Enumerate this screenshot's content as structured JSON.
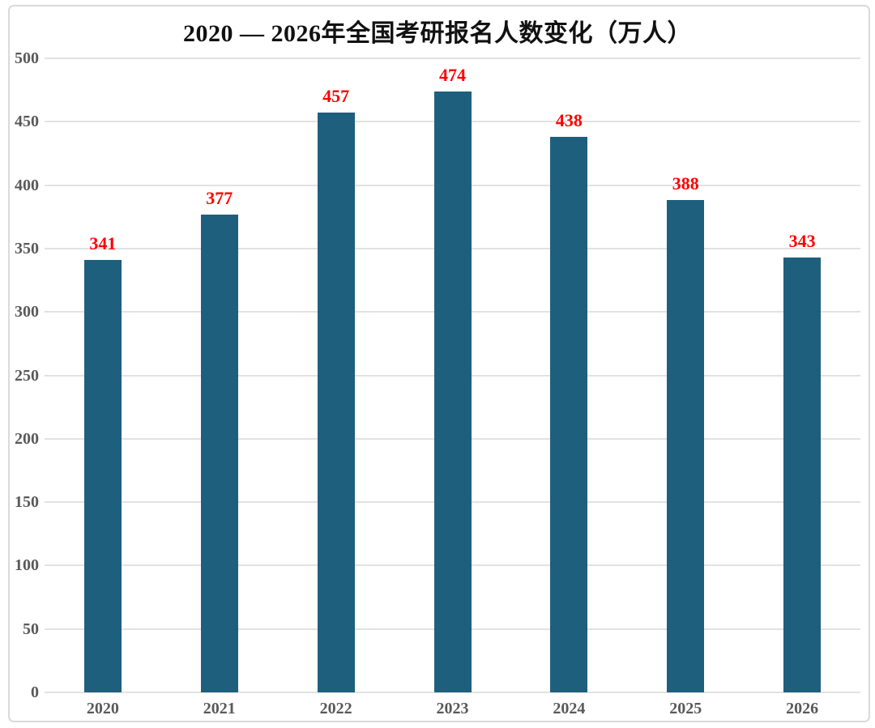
{
  "chart_data": {
    "type": "bar",
    "title": "2020 — 2026年全国考研报名人数变化（万人）",
    "categories": [
      "2020",
      "2021",
      "2022",
      "2023",
      "2024",
      "2025",
      "2026"
    ],
    "values": [
      341,
      377,
      457,
      474,
      438,
      388,
      343
    ],
    "xlabel": "",
    "ylabel": "",
    "ylim": [
      0,
      500
    ],
    "ytick_step": 50,
    "ytick_labels": [
      "0",
      "50",
      "100",
      "150",
      "200",
      "250",
      "300",
      "350",
      "400",
      "450",
      "500"
    ],
    "grid": true,
    "legend": "none",
    "colors": {
      "bar": "#1e5f7e",
      "value_label": "#ff0000",
      "axis_label": "#595959",
      "gridline": "#e2e2e2",
      "title": "#111111",
      "frame_border": "#dadada",
      "background": "#ffffff"
    }
  }
}
